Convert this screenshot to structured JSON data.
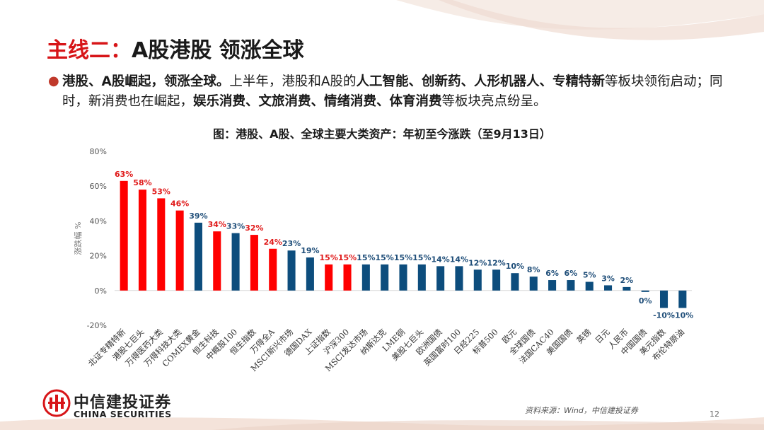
{
  "slide": {
    "title_highlight": "主线二：",
    "title_rest": "A股港股  领涨全球",
    "bullet_parts": [
      {
        "text": "港股、A股崛起，领涨全球。",
        "bold": true
      },
      {
        "text": "上半年，港股和A股的",
        "bold": false
      },
      {
        "text": "人工智能、创新药、人形机器人、专精特新",
        "bold": true
      },
      {
        "text": "等板块领衔启动；同时，新消费也在崛起，",
        "bold": false
      },
      {
        "text": "娱乐消费、文旅消费、情绪消费、体育消费",
        "bold": true
      },
      {
        "text": "等板块亮点纷呈。",
        "bold": false
      }
    ],
    "brand_cn": "中信建投证券",
    "brand_en": "CHINA SECURITIES",
    "source": "资料来源：Wind，中信建投证券",
    "page_number": "12"
  },
  "chart_data": {
    "type": "bar",
    "title": "图：港股、A股、全球主要大类资产：年初至今涨跌（至9月13日）",
    "ylabel": "涨跌幅 %",
    "xlabel": "",
    "ylim": [
      -20,
      80
    ],
    "yticks": [
      -20,
      0,
      20,
      40,
      60,
      80
    ],
    "ytick_labels": [
      "-20%",
      "0%",
      "20%",
      "40%",
      "60%",
      "80%"
    ],
    "grid": false,
    "colors": {
      "red": "#ff0000",
      "blue": "#0d4d7d",
      "red_label": "#e01a1a",
      "blue_label": "#1f4e79"
    },
    "categories": [
      "北证专精特新",
      "港股七巨头",
      "万得医药大类",
      "万得科技大类",
      "COMEX黄金",
      "恒生科技",
      "中概股100",
      "恒生指数",
      "万得全A",
      "MSCI新兴市场",
      "德国DAX",
      "上证指数",
      "沪深300",
      "MSCI发达市场",
      "纳斯达克",
      "LME铜",
      "美股七巨头",
      "欧洲国债",
      "英国富时100",
      "日经225",
      "标普500",
      "欧元",
      "全球国债",
      "法国CAC40",
      "美国国债",
      "英镑",
      "日元",
      "人民币",
      "中国国债",
      "美元指数",
      "布伦特原油"
    ],
    "values": [
      63,
      58,
      53,
      46,
      39,
      34,
      33,
      32,
      24,
      23,
      19,
      15,
      15,
      15,
      15,
      15,
      15,
      14,
      14,
      12,
      12,
      10,
      8,
      6,
      6,
      5,
      3,
      2,
      0,
      -10,
      -10
    ],
    "data_labels": [
      "63%",
      "58%",
      "53%",
      "46%",
      "39%",
      "34%",
      "33%",
      "32%",
      "24%",
      "23%",
      "19%",
      "15%",
      "15%",
      "15%",
      "15%",
      "15%",
      "15%",
      "14%",
      "14%",
      "12%",
      "12%",
      "10%",
      "8%",
      "6%",
      "6%",
      "5%",
      "3%",
      "2%",
      "0%",
      "-10%",
      "-10%"
    ],
    "bar_colors": [
      "red",
      "red",
      "red",
      "red",
      "blue",
      "red",
      "blue",
      "red",
      "red",
      "blue",
      "blue",
      "red",
      "red",
      "blue",
      "blue",
      "blue",
      "blue",
      "blue",
      "blue",
      "blue",
      "blue",
      "blue",
      "blue",
      "blue",
      "blue",
      "blue",
      "blue",
      "blue",
      "blue",
      "blue",
      "blue"
    ]
  }
}
